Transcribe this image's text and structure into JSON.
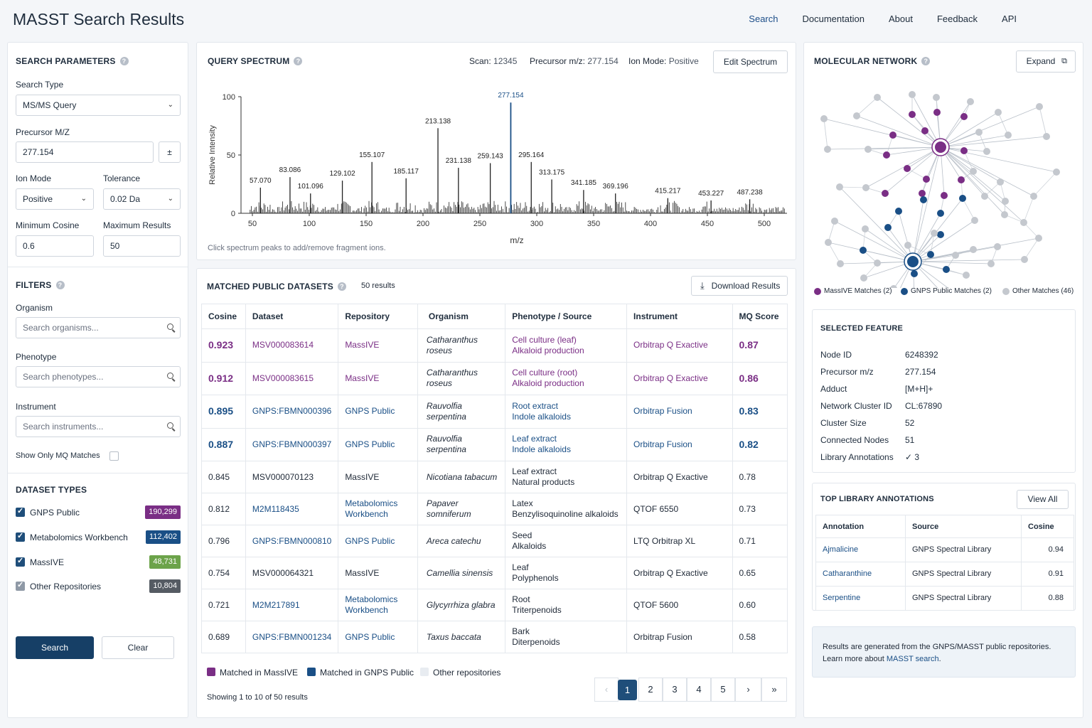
{
  "header": {
    "title": "MASST Search Results",
    "nav": [
      "Search",
      "Documentation",
      "About",
      "Feedback",
      "API"
    ]
  },
  "params": {
    "title": "Search Parameters",
    "search_type_label": "Search Type",
    "search_type": "MS/MS Query",
    "precursor_label": "Precursor M/Z",
    "precursor": "277.154",
    "pm": "±",
    "ion_mode_label": "Ion Mode",
    "ion_mode": "Positive",
    "tolerance_label": "Tolerance",
    "tolerance": "0.02 Da",
    "min_cos_label": "Minimum Cosine",
    "min_cos": "0.6",
    "max_res_label": "Maximum Results",
    "max_res": "50"
  },
  "filters": {
    "title": "Filters",
    "organism_label": "Organism",
    "organism_ph": "Search organisms...",
    "phenotype_label": "Phenotype",
    "phenotype_ph": "Search phenotypes...",
    "instrument_label": "Instrument",
    "instrument_ph": "Search instruments...",
    "mq_only": "Show Only MQ Matches"
  },
  "dataset_types": {
    "title": "Dataset Types",
    "items": [
      {
        "label": "GNPS Public",
        "count": "190,299",
        "color": "#7a2e85"
      },
      {
        "label": "Metabolomics Workbench",
        "count": "112,402",
        "color": "#1a4f86"
      },
      {
        "label": "MassIVE",
        "count": "48,731",
        "color": "#6ca34a"
      },
      {
        "label": "Other Repositories",
        "count": "10,804",
        "color": "#555b63"
      }
    ]
  },
  "actions": {
    "search": "Search",
    "clear": "Clear"
  },
  "spectrum": {
    "title": "Query Spectrum",
    "scan_label": "Scan:",
    "scan": "12345",
    "prec_label": "Precursor m/z:",
    "prec": "277.154",
    "ion_label": "Ion Mode:",
    "ion": "Positive",
    "edit": "Edit Spectrum",
    "xlabel": "m/z",
    "ylabel": "Relative Intensity",
    "hint": "Click spectrum peaks to add/remove fragment ions."
  },
  "chart_data": {
    "type": "bar",
    "xlabel": "m/z",
    "ylabel": "Relative Intensity",
    "xlim": [
      45,
      520
    ],
    "ylim": [
      0,
      100
    ],
    "xticks": [
      50,
      100,
      150,
      200,
      250,
      300,
      350,
      400,
      450,
      500
    ],
    "yticks": [
      0,
      50,
      100
    ],
    "peaks": [
      {
        "mz": 57.07,
        "i": 22
      },
      {
        "mz": 83.086,
        "i": 31
      },
      {
        "mz": 101.096,
        "i": 17
      },
      {
        "mz": 129.102,
        "i": 28
      },
      {
        "mz": 155.107,
        "i": 44
      },
      {
        "mz": 185.117,
        "i": 30
      },
      {
        "mz": 213.138,
        "i": 73
      },
      {
        "mz": 231.138,
        "i": 39
      },
      {
        "mz": 259.143,
        "i": 43
      },
      {
        "mz": 277.154,
        "i": 95
      },
      {
        "mz": 295.164,
        "i": 44
      },
      {
        "mz": 313.175,
        "i": 29
      },
      {
        "mz": 341.185,
        "i": 20
      },
      {
        "mz": 369.196,
        "i": 17
      },
      {
        "mz": 415.217,
        "i": 13
      },
      {
        "mz": 453.227,
        "i": 11
      },
      {
        "mz": 487.238,
        "i": 12
      }
    ],
    "highlight": "277.154"
  },
  "matched": {
    "title": "Matched Public Datasets",
    "count": "50 results",
    "download": "Download Results",
    "cols": [
      "Cosine",
      "Dataset",
      "Repository",
      "Organism",
      "Phenotype / Source",
      "Instrument",
      "MQ Score"
    ],
    "rows": [
      {
        "cos": "0.923",
        "ds": "MSV000083614",
        "repo": "MassIVE",
        "org": "Catharanthus roseus",
        "ph1": "Cell culture (leaf)",
        "ph2": "Alkaloid production",
        "inst": "Orbitrap Q Exactive",
        "mq": "0.87",
        "k": "pur"
      },
      {
        "cos": "0.912",
        "ds": "MSV000083615",
        "repo": "MassIVE",
        "org": "Catharanthus roseus",
        "ph1": "Cell culture (root)",
        "ph2": "Alkaloid production",
        "inst": "Orbitrap Q Exactive",
        "mq": "0.86",
        "k": "pur"
      },
      {
        "cos": "0.895",
        "ds": "GNPS:FBMN000396",
        "repo": "GNPS Public",
        "org": "Rauvolfia serpentina",
        "ph1": "Root extract",
        "ph2": "Indole alkaloids",
        "inst": "Orbitrap Fusion",
        "mq": "0.83",
        "k": "blu"
      },
      {
        "cos": "0.887",
        "ds": "GNPS:FBMN000397",
        "repo": "GNPS Public",
        "org": "Rauvolfia serpentina",
        "ph1": "Leaf extract",
        "ph2": "Indole alkaloids",
        "inst": "Orbitrap Fusion",
        "mq": "0.82",
        "k": "blu"
      },
      {
        "cos": "0.845",
        "ds": "MSV000070123",
        "repo": "MassIVE",
        "org": "Nicotiana tabacum",
        "ph1": "Leaf extract",
        "ph2": "Natural products",
        "inst": "Orbitrap Q Exactive",
        "mq": "0.78",
        "k": "none"
      },
      {
        "cos": "0.812",
        "ds": "M2M118435",
        "repo": "Metabolomics Workbench",
        "org": "Papaver somniferum",
        "ph1": "Latex",
        "ph2": "Benzylisoquinoline alkaloids",
        "inst": "QTOF 6550",
        "mq": "0.73",
        "k": "link"
      },
      {
        "cos": "0.796",
        "ds": "GNPS:FBMN000810",
        "repo": "GNPS Public",
        "org": "Areca catechu",
        "ph1": "Seed",
        "ph2": "Alkaloids",
        "inst": "LTQ Orbitrap XL",
        "mq": "0.71",
        "k": "link"
      },
      {
        "cos": "0.754",
        "ds": "MSV000064321",
        "repo": "MassIVE",
        "org": "Camellia sinensis",
        "ph1": "Leaf",
        "ph2": "Polyphenols",
        "inst": "Orbitrap Q Exactive",
        "mq": "0.65",
        "k": "none"
      },
      {
        "cos": "0.721",
        "ds": "M2M217891",
        "repo": "Metabolomics Workbench",
        "org": "Glycyrrhiza glabra",
        "ph1": "Root",
        "ph2": "Triterpenoids",
        "inst": "QTOF 5600",
        "mq": "0.60",
        "k": "link"
      },
      {
        "cos": "0.689",
        "ds": "GNPS:FBMN001234",
        "repo": "GNPS Public",
        "org": "Taxus baccata",
        "ph1": "Bark",
        "ph2": "Diterpenoids",
        "inst": "Orbitrap Fusion",
        "mq": "0.58",
        "k": "link"
      }
    ],
    "legend": [
      "Matched in MassIVE",
      "Matched in GNPS Public",
      "Other repositories"
    ],
    "showing": "Showing 1 to 10 of 50 results",
    "pages": [
      "1",
      "2",
      "3",
      "4",
      "5"
    ]
  },
  "network": {
    "title": "Molecular Network",
    "expand": "Expand",
    "legend": [
      "MassIVE Matches (2)",
      "GNPS Public Matches (2)",
      "Other Matches (46)"
    ]
  },
  "feature": {
    "title": "Selected Feature",
    "rows": [
      [
        "Node ID",
        "6248392"
      ],
      [
        "Precursor m/z",
        "277.154"
      ],
      [
        "Adduct",
        "[M+H]+"
      ],
      [
        "Network Cluster ID",
        "CL:67890"
      ],
      [
        "Cluster Size",
        "52"
      ],
      [
        "Connected Nodes",
        "51"
      ],
      [
        "Library Annotations",
        "✓ 3"
      ]
    ]
  },
  "library": {
    "title": "Top Library Annotations",
    "view_all": "View All",
    "cols": [
      "Annotation",
      "Source",
      "Cosine"
    ],
    "rows": [
      [
        "Ajmalicine",
        "GNPS Spectral Library",
        "0.94"
      ],
      [
        "Catharanthine",
        "GNPS Spectral Library",
        "0.91"
      ],
      [
        "Serpentine",
        "GNPS Spectral Library",
        "0.88"
      ]
    ]
  },
  "note": {
    "line1": "Results are generated from the GNPS/MASST public repositories.",
    "line2_pre": "Learn more about ",
    "line2_link": "MASST search",
    "line2_post": "."
  }
}
